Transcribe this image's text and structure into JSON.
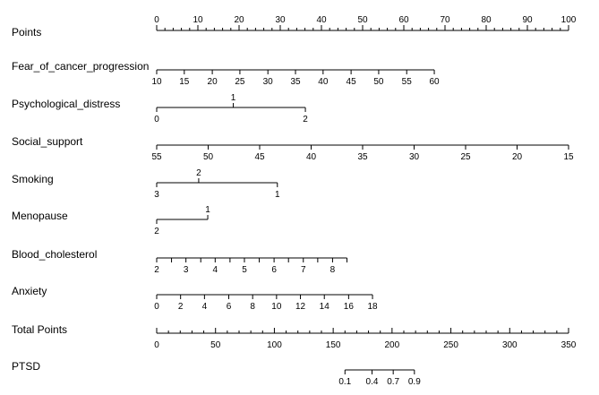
{
  "chart_data": {
    "type": "nomogram",
    "points_range": [
      0,
      100
    ],
    "rows": [
      {
        "name": "Points",
        "kind": "points",
        "labels": [
          "0",
          "10",
          "20",
          "30",
          "40",
          "50",
          "60",
          "70",
          "80",
          "90",
          "100"
        ],
        "ticks": [
          {
            "value": 0,
            "points": 0
          },
          {
            "value": 10,
            "points": 10
          },
          {
            "value": 20,
            "points": 20
          },
          {
            "value": 30,
            "points": 30
          },
          {
            "value": 40,
            "points": 40
          },
          {
            "value": 50,
            "points": 50
          },
          {
            "value": 60,
            "points": 60
          },
          {
            "value": 70,
            "points": 70
          },
          {
            "value": 80,
            "points": 80
          },
          {
            "value": 90,
            "points": 90
          },
          {
            "value": 100,
            "points": 100
          }
        ]
      },
      {
        "name": "Fear_of_cancer_progression",
        "kind": "variable",
        "ticks": [
          {
            "label": "10",
            "points": 0,
            "pos": "below"
          },
          {
            "label": "15",
            "points": 6.7,
            "pos": "below"
          },
          {
            "label": "20",
            "points": 13.5,
            "pos": "below"
          },
          {
            "label": "25",
            "points": 20.2,
            "pos": "below"
          },
          {
            "label": "30",
            "points": 27.0,
            "pos": "below"
          },
          {
            "label": "35",
            "points": 33.7,
            "pos": "below"
          },
          {
            "label": "40",
            "points": 40.4,
            "pos": "below"
          },
          {
            "label": "45",
            "points": 47.2,
            "pos": "below"
          },
          {
            "label": "50",
            "points": 53.9,
            "pos": "below"
          },
          {
            "label": "55",
            "points": 60.7,
            "pos": "below"
          },
          {
            "label": "60",
            "points": 67.4,
            "pos": "below"
          }
        ]
      },
      {
        "name": "Psychological_distress",
        "kind": "variable",
        "ticks": [
          {
            "label": "0",
            "points": 0,
            "pos": "below"
          },
          {
            "label": "1",
            "points": 18.6,
            "pos": "above"
          },
          {
            "label": "2",
            "points": 36.1,
            "pos": "below"
          }
        ]
      },
      {
        "name": "Social_support",
        "kind": "variable",
        "ticks": [
          {
            "label": "55",
            "points": 0,
            "pos": "below"
          },
          {
            "label": "50",
            "points": 12.5,
            "pos": "below"
          },
          {
            "label": "45",
            "points": 25.0,
            "pos": "below"
          },
          {
            "label": "40",
            "points": 37.5,
            "pos": "below"
          },
          {
            "label": "35",
            "points": 50.0,
            "pos": "below"
          },
          {
            "label": "30",
            "points": 62.5,
            "pos": "below"
          },
          {
            "label": "25",
            "points": 75.0,
            "pos": "below"
          },
          {
            "label": "20",
            "points": 87.5,
            "pos": "below"
          },
          {
            "label": "15",
            "points": 100,
            "pos": "below"
          }
        ]
      },
      {
        "name": "Smoking",
        "kind": "variable",
        "ticks": [
          {
            "label": "3",
            "points": 0,
            "pos": "below"
          },
          {
            "label": "2",
            "points": 10.2,
            "pos": "above"
          },
          {
            "label": "1",
            "points": 29.3,
            "pos": "below"
          }
        ]
      },
      {
        "name": "Menopause",
        "kind": "variable",
        "ticks": [
          {
            "label": "2",
            "points": 0,
            "pos": "below"
          },
          {
            "label": "1",
            "points": 12.4,
            "pos": "above"
          }
        ]
      },
      {
        "name": "Blood_cholesterol",
        "kind": "variable",
        "ticks": [
          {
            "label": "2",
            "points": 0,
            "pos": "below"
          },
          {
            "label": "",
            "points": 3.6,
            "pos": "below"
          },
          {
            "label": "3",
            "points": 7.1,
            "pos": "below"
          },
          {
            "label": "",
            "points": 10.7,
            "pos": "below"
          },
          {
            "label": "4",
            "points": 14.2,
            "pos": "below"
          },
          {
            "label": "",
            "points": 17.8,
            "pos": "below"
          },
          {
            "label": "5",
            "points": 21.3,
            "pos": "below"
          },
          {
            "label": "",
            "points": 24.9,
            "pos": "below"
          },
          {
            "label": "6",
            "points": 28.5,
            "pos": "below"
          },
          {
            "label": "",
            "points": 32.0,
            "pos": "below"
          },
          {
            "label": "7",
            "points": 35.6,
            "pos": "below"
          },
          {
            "label": "",
            "points": 39.1,
            "pos": "below"
          },
          {
            "label": "8",
            "points": 42.7,
            "pos": "below"
          },
          {
            "label": "",
            "points": 46.2,
            "pos": "below"
          }
        ]
      },
      {
        "name": "Anxiety",
        "kind": "variable",
        "ticks": [
          {
            "label": "0",
            "points": 0,
            "pos": "below"
          },
          {
            "label": "2",
            "points": 5.8,
            "pos": "below"
          },
          {
            "label": "4",
            "points": 11.6,
            "pos": "below"
          },
          {
            "label": "6",
            "points": 17.5,
            "pos": "below"
          },
          {
            "label": "8",
            "points": 23.3,
            "pos": "below"
          },
          {
            "label": "10",
            "points": 29.1,
            "pos": "below"
          },
          {
            "label": "12",
            "points": 34.9,
            "pos": "below"
          },
          {
            "label": "14",
            "points": 40.7,
            "pos": "below"
          },
          {
            "label": "16",
            "points": 46.6,
            "pos": "below"
          },
          {
            "label": "18",
            "points": 52.4,
            "pos": "below"
          }
        ]
      },
      {
        "name": "Total Points",
        "kind": "total",
        "range": [
          0,
          350
        ],
        "labels": [
          "0",
          "50",
          "100",
          "150",
          "200",
          "250",
          "300",
          "350"
        ],
        "ticks": [
          {
            "value": 0
          },
          {
            "value": 50
          },
          {
            "value": 100
          },
          {
            "value": 150
          },
          {
            "value": 200
          },
          {
            "value": 250
          },
          {
            "value": 300
          },
          {
            "value": 350
          }
        ]
      },
      {
        "name": "PTSD",
        "kind": "probability",
        "ticks": [
          {
            "label": "0.1",
            "total": 160
          },
          {
            "label": "0.4",
            "total": 183
          },
          {
            "label": "0.7",
            "total": 201
          },
          {
            "label": "0.9",
            "total": 219
          }
        ]
      }
    ]
  }
}
